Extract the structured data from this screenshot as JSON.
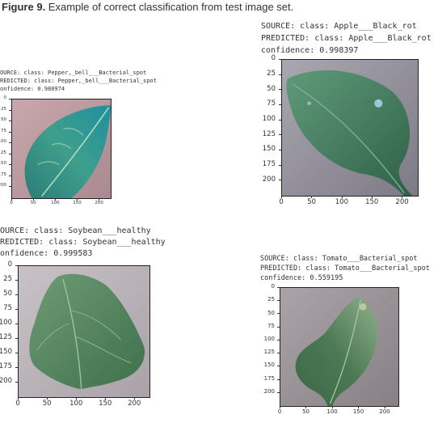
{
  "caption": {
    "label": "Figure 9.",
    "text": " Example of correct classification from test image set."
  },
  "panels": [
    {
      "id": "apple",
      "source": "SOURCE: class: Apple___Black_rot",
      "predicted": "PREDICTED: class: Apple___Black_rot",
      "confidence": "confidence: 0.998397",
      "xticks": [
        "0",
        "50",
        "100",
        "150",
        "200"
      ],
      "yticks": [
        "0",
        "25",
        "50",
        "75",
        "100",
        "125",
        "150",
        "175",
        "200"
      ]
    },
    {
      "id": "pepper",
      "source": "OURCE: class: Pepper,_bell___Bacterial_spot",
      "predicted": "REDICTED: class: Pepper,_bell___Bacterial_spot",
      "confidence": "onfidence: 0.980974",
      "xticks": [
        "0",
        "50",
        "100",
        "150",
        "200"
      ],
      "yticks": [
        "0",
        "25",
        "50",
        "75",
        "100",
        "125",
        "150",
        "175",
        "200"
      ]
    },
    {
      "id": "soybean",
      "source": "OURCE: class: Soybean___healthy",
      "predicted": "REDICTED: class: Soybean___healthy",
      "confidence": "onfidence: 0.999583",
      "xticks": [
        "0",
        "50",
        "100",
        "150",
        "200"
      ],
      "yticks": [
        "0",
        "25",
        "50",
        "75",
        "100",
        "125",
        "150",
        "175",
        "200"
      ]
    },
    {
      "id": "tomato",
      "source": "SOURCE: class: Tomato___Bacterial_spot",
      "predicted": "PREDICTED: class: Tomato___Bacterial_spot",
      "confidence": "confidence: 0.559195",
      "xticks": [
        "0",
        "50",
        "100",
        "150",
        "200"
      ],
      "yticks": [
        "0",
        "25",
        "50",
        "75",
        "100",
        "125",
        "150",
        "175",
        "200"
      ]
    }
  ]
}
